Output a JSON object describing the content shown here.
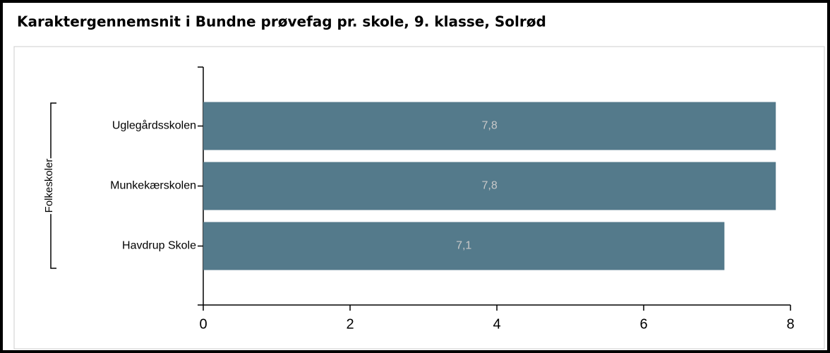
{
  "chart_data": {
    "type": "bar",
    "orientation": "horizontal",
    "title": "Karaktergennemsnit i Bundne prøvefag pr. skole, 9. klasse, Solrød",
    "group_label": "Folkeskoler",
    "categories": [
      "Uglegårdsskolen",
      "Munkekærskolen",
      "Havdrup Skole"
    ],
    "values": [
      7.8,
      7.8,
      7.1
    ],
    "value_labels": [
      "7,8",
      "7,8",
      "7,1"
    ],
    "color": "#547a8b",
    "xlim": [
      0,
      8
    ],
    "xticks": [
      0,
      2,
      4,
      6,
      8
    ],
    "grid": false
  }
}
